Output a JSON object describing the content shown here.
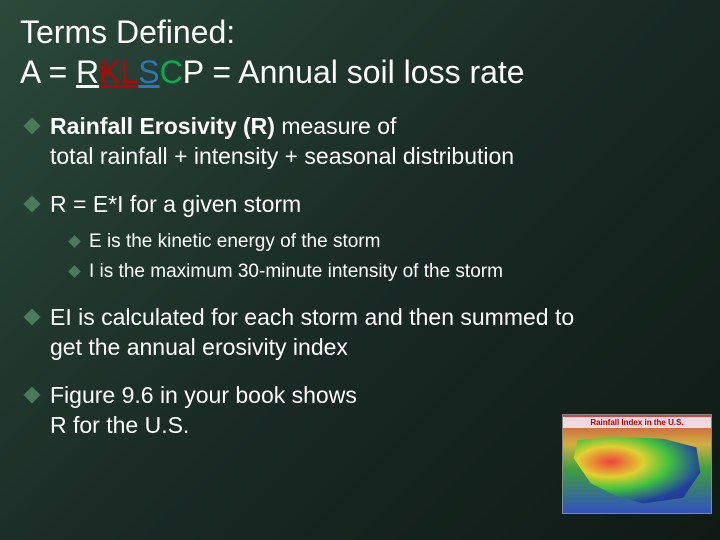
{
  "title_line1": "Terms Defined:",
  "title_formula_A": "A = ",
  "title_formula_R": "R",
  "title_formula_K": "K",
  "title_formula_L": "L",
  "title_formula_S": "S",
  "title_formula_C": "C",
  "title_formula_P": "P",
  "title_formula_eq": " = Annual soil loss rate",
  "b1_bold": "Rainfall Erosivity (R) ",
  "b1_rest1": "  measure of",
  "b1_rest2": "total rainfall + intensity + seasonal distribution",
  "b2_text": "R = E*I       for a given storm",
  "b2a_text": "E is the kinetic energy of the storm",
  "b2b_text": "I is the maximum 30-minute intensity of the storm",
  "b3_line1": "EI is calculated for each storm and then summed to",
  "b3_line2": "get the annual erosivity index",
  "b4_line1": "Figure 9.6 in your book shows",
  "b4_line2": "R for the U.S.",
  "map_label": "Rainfall Index in the U.S.",
  "colors": {
    "bg_start": "#2a4a3a",
    "bg_end": "#0f1a15",
    "diamond": "#4a7a5a",
    "text": "#ffffff",
    "k": "#c00000",
    "s": "#2e75b6",
    "c": "#00b050"
  }
}
